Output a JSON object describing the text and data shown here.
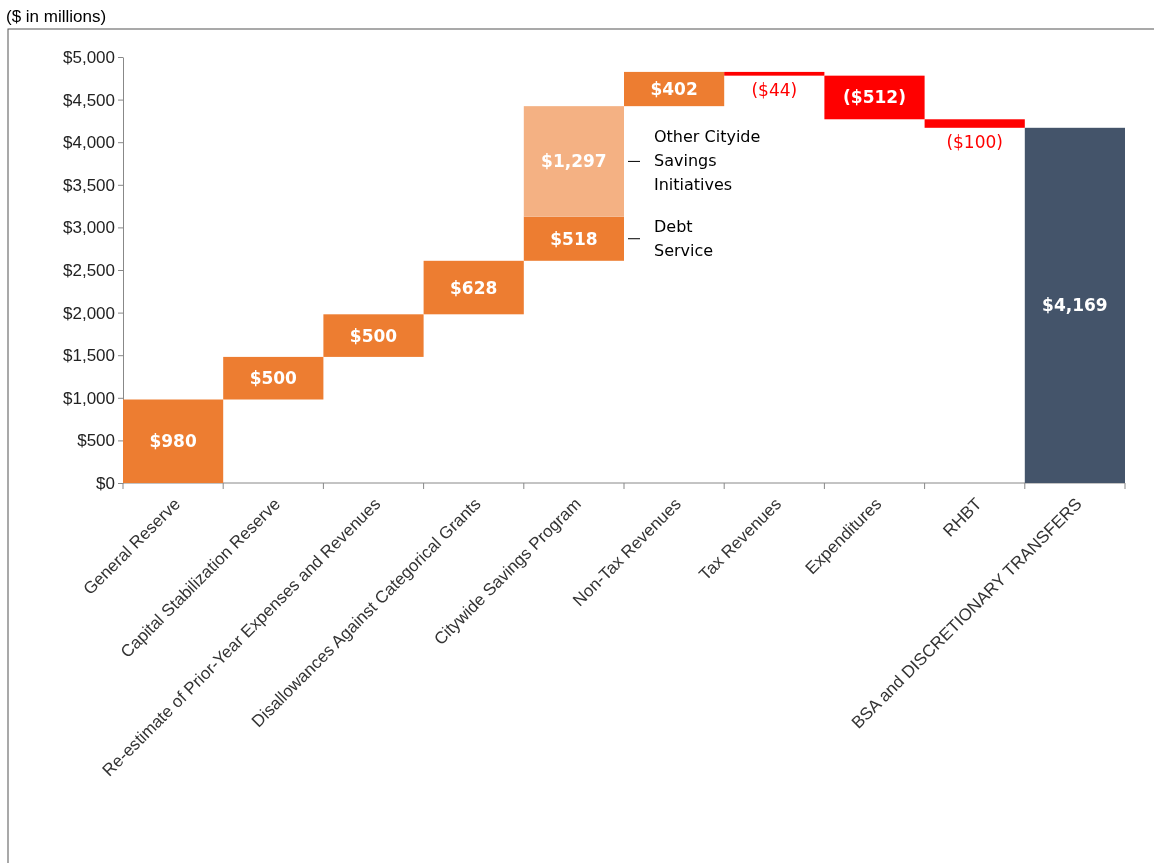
{
  "chart_data": {
    "type": "bar",
    "title": "($ in millions)",
    "categories": [
      "General Reserve",
      "Capital Stabilization Reserve",
      "Re-estimate of Prior-Year Expenses and Revenues",
      "Disallowances Against Categorical Grants",
      "Citywide Savings Program",
      "Non-Tax Revenues",
      "Tax Revenues",
      "Expenditures",
      "RHBT",
      "BSA and DISCRETIONARY TRANSFERS"
    ],
    "series": [
      {
        "values": [
          980,
          500,
          500,
          628,
          null,
          402,
          -44,
          -512,
          -100,
          4169
        ],
        "base": [
          0,
          980,
          1480,
          1980,
          null,
          4423,
          4825,
          4781,
          4269,
          0
        ],
        "colors": [
          "#ed7d31",
          "#ed7d31",
          "#ed7d31",
          "#ed7d31",
          null,
          "#ed7d31",
          "#ff0000",
          "#ff0000",
          "#ff0000",
          "#44546a"
        ],
        "value_labels": [
          "$980",
          "$500",
          "$500",
          "$628",
          null,
          "$402",
          "($44)",
          "($512)",
          "($100)",
          "$4,169"
        ]
      },
      {
        "name": "Debt Service",
        "values": [
          null,
          null,
          null,
          null,
          518,
          null,
          null,
          null,
          null,
          null
        ],
        "base": [
          null,
          null,
          null,
          null,
          2608,
          null,
          null,
          null,
          null,
          null
        ],
        "color": "#ed7d31",
        "value_labels": [
          null,
          null,
          null,
          null,
          "$518",
          null,
          null,
          null,
          null,
          null
        ]
      },
      {
        "name": "Other Cityide Savings Initiatives",
        "values": [
          null,
          null,
          null,
          null,
          1297,
          null,
          null,
          null,
          null,
          null
        ],
        "base": [
          null,
          null,
          null,
          null,
          3126,
          null,
          null,
          null,
          null,
          null
        ],
        "color": "#f4b183",
        "value_labels": [
          null,
          null,
          null,
          null,
          "$1,297",
          null,
          null,
          null,
          null,
          null
        ]
      }
    ],
    "ylim": [
      0,
      5000
    ],
    "yticks": [
      {
        "value": 0,
        "label": "$0"
      },
      {
        "value": 500,
        "label": "$500"
      },
      {
        "value": 1000,
        "label": "$1,000"
      },
      {
        "value": 1500,
        "label": "$1,500"
      },
      {
        "value": 2000,
        "label": "$2,000"
      },
      {
        "value": 2500,
        "label": "$2,500"
      },
      {
        "value": 3000,
        "label": "$3,000"
      },
      {
        "value": 3500,
        "label": "$3,500"
      },
      {
        "value": 4000,
        "label": "$4,000"
      },
      {
        "value": 4500,
        "label": "$4,500"
      },
      {
        "value": 5000,
        "label": "$5,000"
      }
    ],
    "grid": false
  }
}
